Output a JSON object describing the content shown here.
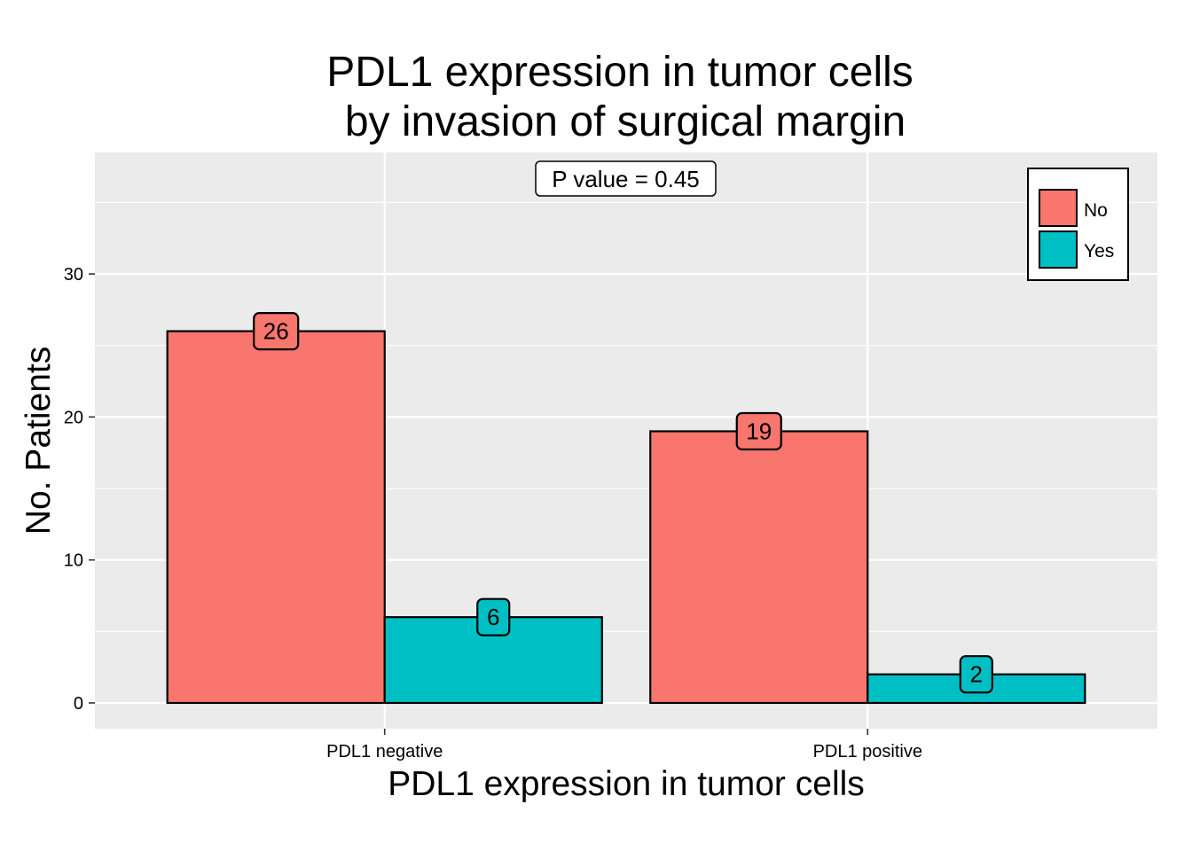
{
  "chart_data": {
    "type": "bar",
    "title": "PDL1 expression in tumor cells",
    "subtitle": "by invasion of surgical margin",
    "xlabel": "PDL1 expression in tumor cells",
    "ylabel": "No. Patients",
    "categories": [
      "PDL1 negative",
      "PDL1 positive"
    ],
    "series": [
      {
        "name": "No",
        "color": "#F8766D",
        "values": [
          26,
          19
        ]
      },
      {
        "name": "Yes",
        "color": "#00BFC4",
        "values": [
          6,
          2
        ]
      }
    ],
    "ylim": [
      -1.8,
      38.5
    ],
    "yticks": [
      0,
      10,
      20,
      30
    ],
    "grid": true,
    "legend_position": "top-right",
    "annotation": "P value = 0.45",
    "colors": {
      "panel_background": "#EBEBEB",
      "grid": "#FFFFFF"
    }
  }
}
